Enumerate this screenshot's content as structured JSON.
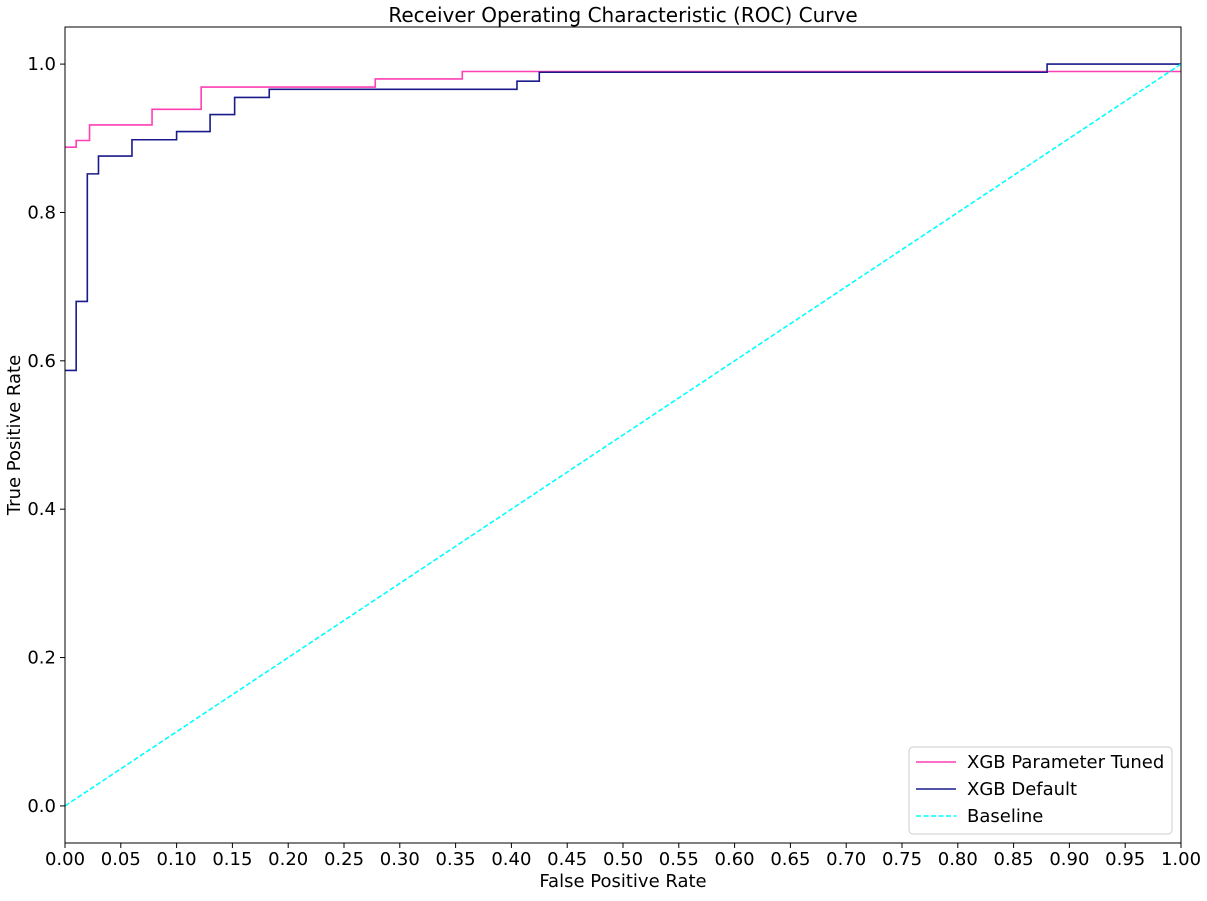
{
  "chart_data": {
    "type": "line",
    "title": "Receiver Operating Characteristic (ROC) Curve",
    "xlabel": "False Positive Rate",
    "ylabel": "True Positive Rate",
    "xlim": [
      0,
      1
    ],
    "ylim": [
      -0.05,
      1.05
    ],
    "xticks": [
      0,
      0.05,
      0.1,
      0.15,
      0.2,
      0.25,
      0.3,
      0.35,
      0.4,
      0.45,
      0.5,
      0.55,
      0.6,
      0.65,
      0.7,
      0.75,
      0.8,
      0.85,
      0.9,
      0.95,
      1.0
    ],
    "xtick_labels": [
      "0.00",
      "0.05",
      "0.10",
      "0.15",
      "0.20",
      "0.25",
      "0.30",
      "0.35",
      "0.40",
      "0.45",
      "0.50",
      "0.55",
      "0.60",
      "0.65",
      "0.70",
      "0.75",
      "0.80",
      "0.85",
      "0.90",
      "0.95",
      "1.00"
    ],
    "yticks": [
      0,
      0.2,
      0.4,
      0.6,
      0.8,
      1.0
    ],
    "ytick_labels": [
      "0.0",
      "0.2",
      "0.4",
      "0.6",
      "0.8",
      "1.0"
    ],
    "grid": false,
    "legend_position": "bottom-right",
    "series": [
      {
        "name": "XGB Parameter Tuned",
        "color": "#ff3fb4",
        "style": "solid",
        "step": true,
        "x": [
          0.0,
          0.01,
          0.01,
          0.022,
          0.022,
          0.078,
          0.078,
          0.122,
          0.122,
          0.278,
          0.278,
          0.356,
          0.356,
          1.0
        ],
        "y": [
          0.888,
          0.888,
          0.897,
          0.897,
          0.918,
          0.918,
          0.939,
          0.939,
          0.969,
          0.969,
          0.98,
          0.98,
          0.99,
          0.99
        ]
      },
      {
        "name": "XGB Default",
        "color": "#1a1a8c",
        "style": "solid",
        "step": true,
        "x": [
          0.0,
          0.01,
          0.01,
          0.02,
          0.02,
          0.03,
          0.03,
          0.06,
          0.06,
          0.1,
          0.1,
          0.13,
          0.13,
          0.152,
          0.152,
          0.183,
          0.183,
          0.405,
          0.405,
          0.425,
          0.425,
          0.88,
          0.88,
          1.0
        ],
        "y": [
          0.587,
          0.587,
          0.68,
          0.68,
          0.852,
          0.852,
          0.876,
          0.876,
          0.898,
          0.898,
          0.909,
          0.909,
          0.932,
          0.932,
          0.955,
          0.955,
          0.966,
          0.966,
          0.977,
          0.977,
          0.989,
          0.989,
          1.0,
          1.0
        ]
      },
      {
        "name": "Baseline",
        "color": "#00ffff",
        "style": "dashed",
        "step": false,
        "x": [
          0.0,
          1.0
        ],
        "y": [
          0.0,
          1.0
        ]
      }
    ]
  }
}
